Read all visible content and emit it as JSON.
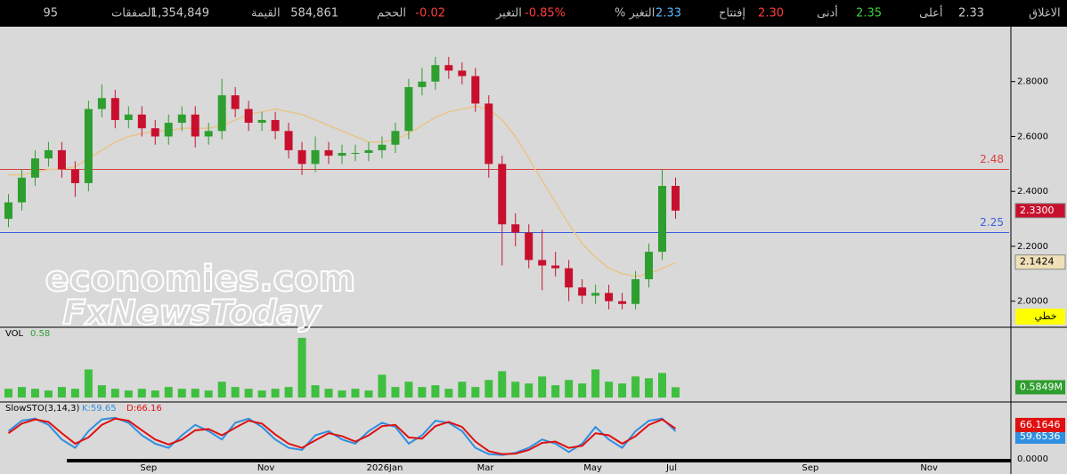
{
  "header": {
    "stats": [
      {
        "label": "الاغلاق",
        "value": "2.33",
        "color": "#c8c8c8"
      },
      {
        "label": "أعلى",
        "value": "2.35",
        "color": "#3ecf3e"
      },
      {
        "label": "أدنى",
        "value": "2.30",
        "color": "#ff3b3b"
      },
      {
        "label": "إفتتاح",
        "value": "2.33",
        "color": "#5ab8ff"
      },
      {
        "label": "التغير %",
        "value": "-0.85%",
        "color": "#ff3b3b"
      },
      {
        "label": "التغير",
        "value": "-0.02",
        "color": "#ff3b3b"
      },
      {
        "label": "الحجم",
        "value": "584,861",
        "color": "#c8c8c8"
      },
      {
        "label": "القيمة",
        "value": "1,354,849",
        "color": "#c8c8c8"
      },
      {
        "label": "الصفقات",
        "value": "95",
        "color": "#c8c8c8"
      }
    ]
  },
  "watermark": [
    "economies.com",
    "FxNewsToday"
  ],
  "chart_data": {
    "type": "candlestick",
    "up_color": "#2e9e2e",
    "down_color": "#c8102e",
    "open": [
      2.3,
      2.36,
      2.45,
      2.52,
      2.55,
      2.48,
      2.43,
      2.7,
      2.74,
      2.66,
      2.68,
      2.63,
      2.6,
      2.65,
      2.68,
      2.6,
      2.62,
      2.75,
      2.7,
      2.65,
      2.66,
      2.62,
      2.55,
      2.5,
      2.55,
      2.53,
      2.54,
      2.54,
      2.55,
      2.57,
      2.62,
      2.78,
      2.8,
      2.86,
      2.84,
      2.82,
      2.72,
      2.5,
      2.28,
      2.25,
      2.15,
      2.13,
      2.12,
      2.05,
      2.02,
      2.03,
      2.0,
      1.99,
      2.08,
      2.18,
      2.42
    ],
    "high": [
      2.39,
      2.48,
      2.55,
      2.58,
      2.58,
      2.51,
      2.73,
      2.79,
      2.77,
      2.71,
      2.71,
      2.66,
      2.68,
      2.71,
      2.71,
      2.65,
      2.81,
      2.78,
      2.73,
      2.69,
      2.69,
      2.65,
      2.58,
      2.6,
      2.58,
      2.57,
      2.57,
      2.58,
      2.6,
      2.65,
      2.81,
      2.85,
      2.89,
      2.89,
      2.87,
      2.85,
      2.75,
      2.53,
      2.32,
      2.28,
      2.26,
      2.18,
      2.15,
      2.08,
      2.06,
      2.06,
      2.03,
      2.11,
      2.21,
      2.48,
      2.45
    ],
    "low": [
      2.27,
      2.33,
      2.42,
      2.49,
      2.45,
      2.38,
      2.4,
      2.67,
      2.63,
      2.63,
      2.6,
      2.57,
      2.57,
      2.62,
      2.56,
      2.57,
      2.59,
      2.67,
      2.62,
      2.62,
      2.59,
      2.52,
      2.46,
      2.47,
      2.5,
      2.5,
      2.51,
      2.51,
      2.52,
      2.54,
      2.59,
      2.75,
      2.77,
      2.81,
      2.79,
      2.69,
      2.45,
      2.13,
      2.2,
      2.12,
      2.04,
      2.09,
      2.0,
      1.99,
      1.99,
      1.97,
      1.97,
      1.97,
      2.05,
      2.15,
      2.3
    ],
    "close": [
      2.36,
      2.45,
      2.52,
      2.55,
      2.48,
      2.43,
      2.7,
      2.74,
      2.66,
      2.68,
      2.63,
      2.6,
      2.65,
      2.68,
      2.6,
      2.62,
      2.75,
      2.7,
      2.65,
      2.66,
      2.62,
      2.55,
      2.5,
      2.55,
      2.53,
      2.54,
      2.54,
      2.55,
      2.57,
      2.62,
      2.78,
      2.8,
      2.86,
      2.84,
      2.82,
      2.72,
      2.5,
      2.28,
      2.25,
      2.15,
      2.13,
      2.12,
      2.05,
      2.02,
      2.03,
      2.0,
      1.99,
      2.08,
      2.18,
      2.42,
      2.33
    ],
    "moving_average": {
      "color": "#e8c48a",
      "values": [
        2.46,
        2.46,
        2.47,
        2.48,
        2.48,
        2.49,
        2.52,
        2.55,
        2.58,
        2.6,
        2.61,
        2.62,
        2.62,
        2.63,
        2.63,
        2.63,
        2.64,
        2.66,
        2.68,
        2.69,
        2.7,
        2.69,
        2.68,
        2.66,
        2.64,
        2.62,
        2.6,
        2.58,
        2.58,
        2.59,
        2.61,
        2.64,
        2.67,
        2.69,
        2.7,
        2.71,
        2.7,
        2.66,
        2.6,
        2.52,
        2.44,
        2.36,
        2.28,
        2.21,
        2.16,
        2.12,
        2.1,
        2.09,
        2.1,
        2.12,
        2.14
      ]
    },
    "xlim": [
      -0.5,
      75
    ],
    "xticks": [
      {
        "value": 10.5,
        "label": "Sep"
      },
      {
        "value": 19.3,
        "label": "Nov"
      },
      {
        "value": 28.2,
        "label": "2026Jan"
      },
      {
        "value": 35.75,
        "label": "Mar"
      },
      {
        "value": 43.8,
        "label": "May"
      },
      {
        "value": 49.7,
        "label": "Jul"
      },
      {
        "value": 60.1,
        "label": "Sep"
      },
      {
        "value": 69.0,
        "label": "Nov"
      }
    ],
    "ylim": [
      1.905,
      3.0
    ],
    "yticks": [
      {
        "value": 2.0,
        "label": "2.0000"
      },
      {
        "value": 2.2,
        "label": "2.2000"
      },
      {
        "value": 2.4,
        "label": "2.4000"
      },
      {
        "value": 2.6,
        "label": "2.6000"
      },
      {
        "value": 2.8,
        "label": "2.8000"
      }
    ],
    "hlines": [
      {
        "value": 2.48,
        "color": "#d94040"
      },
      {
        "value": 2.25,
        "color": "#3a5ce0"
      }
    ],
    "price_tags": [
      {
        "value": 2.33,
        "label": "2.3300",
        "color": "#c8102e",
        "text_color": "#ffffff"
      },
      {
        "value": 2.1424,
        "label": "2.1424",
        "color": "#f0e0b8",
        "text_color": "#000000"
      }
    ],
    "style_label": "خطي",
    "volume": {
      "title": "VOL",
      "last": "0.58",
      "color": "#3fbf3f",
      "ylim": [
        0,
        3.8
      ],
      "values": [
        0.5,
        0.6,
        0.5,
        0.4,
        0.6,
        0.5,
        1.6,
        0.7,
        0.5,
        0.4,
        0.5,
        0.4,
        0.6,
        0.5,
        0.5,
        0.4,
        0.9,
        0.6,
        0.5,
        0.4,
        0.5,
        0.6,
        3.4,
        0.7,
        0.5,
        0.4,
        0.5,
        0.4,
        1.3,
        0.6,
        0.9,
        0.6,
        0.7,
        0.5,
        0.9,
        0.6,
        1.0,
        1.5,
        0.9,
        0.8,
        1.2,
        0.7,
        1.0,
        0.8,
        1.6,
        0.9,
        0.8,
        1.2,
        1.1,
        1.4,
        0.5849
      ],
      "tag": {
        "value": 0.5849,
        "label": "0.5849M"
      }
    },
    "stochastic": {
      "title": "SlowSTO(3,14,3)",
      "ylim": [
        0,
        100
      ],
      "yticks": [
        {
          "value": 0,
          "label": "0.0000"
        }
      ],
      "series": [
        {
          "name": "K:59.65",
          "color": "#2f8fe0",
          "tag": {
            "value": 59.6536,
            "label": "59.6536"
          },
          "values": [
            60,
            85,
            90,
            75,
            40,
            20,
            60,
            88,
            92,
            80,
            50,
            30,
            20,
            50,
            75,
            60,
            40,
            80,
            90,
            70,
            40,
            20,
            15,
            50,
            60,
            40,
            30,
            60,
            80,
            70,
            30,
            50,
            85,
            80,
            60,
            20,
            5,
            3,
            8,
            20,
            40,
            30,
            10,
            30,
            70,
            40,
            20,
            60,
            85,
            90,
            59.6536
          ]
        },
        {
          "name": "D:66.16",
          "color": "#e01010",
          "tag": {
            "value": 66.1646,
            "label": "66.1646"
          },
          "values": [
            55,
            78,
            88,
            82,
            55,
            30,
            45,
            75,
            90,
            85,
            62,
            40,
            28,
            40,
            62,
            65,
            50,
            68,
            85,
            78,
            52,
            30,
            20,
            38,
            55,
            48,
            35,
            50,
            72,
            75,
            45,
            42,
            72,
            82,
            70,
            35,
            12,
            5,
            6,
            15,
            32,
            35,
            20,
            25,
            55,
            50,
            30,
            48,
            75,
            88,
            66.1646
          ]
        }
      ]
    }
  }
}
